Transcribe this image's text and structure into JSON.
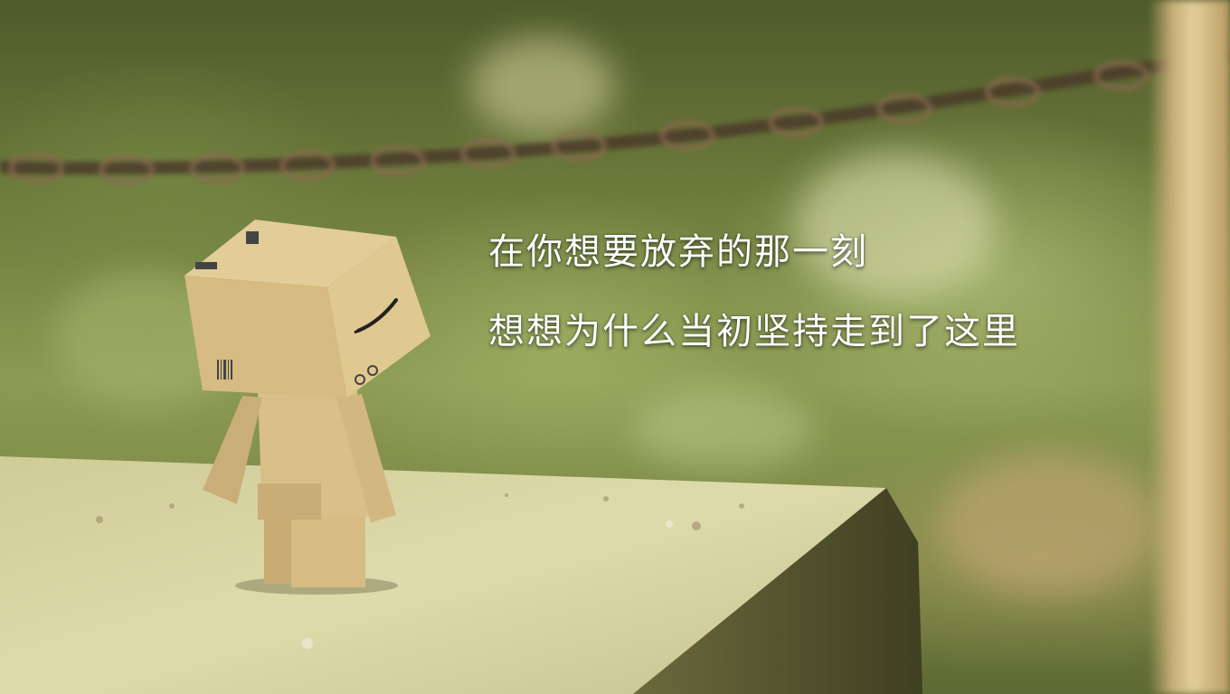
{
  "caption": {
    "lines": [
      "在你想要放弃的那一刻",
      "想想为什么当初坚持走到了这里"
    ]
  },
  "scene": {
    "background_color": "#6f7d3d",
    "stone_color": "#d7d3a2",
    "box_color": "#d8bf86",
    "text_color": "#ffffff"
  }
}
